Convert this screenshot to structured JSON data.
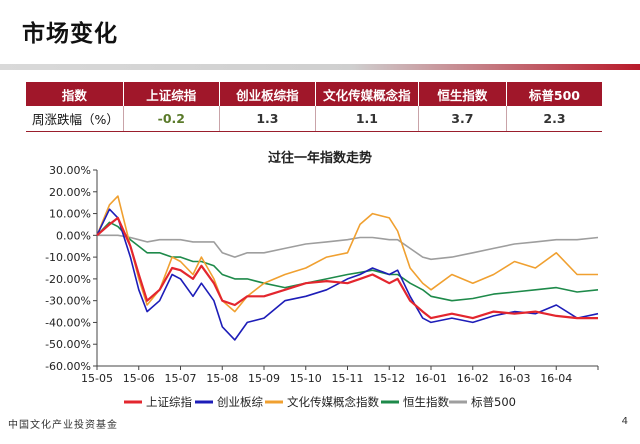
{
  "page": {
    "title": "市场变化",
    "page_number": "4",
    "footer_logo": "中国文化产业投资基金"
  },
  "table": {
    "headers": [
      "指数",
      "上证综指",
      "创业板综指",
      "文化传媒概念指",
      "恒生指数",
      "标普500"
    ],
    "row_label": "周涨跌幅（%）",
    "values": [
      "-0.2",
      "1.3",
      "1.1",
      "3.7",
      "2.3"
    ]
  },
  "chart_data": {
    "type": "line",
    "title": "过往一年指数走势",
    "xlabel": "",
    "ylabel": "",
    "x_ticks": [
      "15-05",
      "15-06",
      "15-07",
      "15-08",
      "15-09",
      "15-10",
      "15-11",
      "15-12",
      "16-01",
      "16-02",
      "16-03",
      "16-04"
    ],
    "y_ticks": [
      "30.00%",
      "20.00%",
      "10.00%",
      "0.00%",
      "-10.00%",
      "-20.00%",
      "-30.00%",
      "-40.00%",
      "-50.00%",
      "-60.00%"
    ],
    "ylim": [
      -60,
      30
    ],
    "grid": false,
    "legend_position": "bottom",
    "series": [
      {
        "name": "上证综指",
        "color": "#e3262e",
        "x": [
          0,
          0.3,
          0.5,
          0.8,
          1,
          1.2,
          1.5,
          1.8,
          2,
          2.3,
          2.5,
          2.8,
          3,
          3.3,
          3.6,
          4,
          4.5,
          5,
          5.5,
          6,
          6.3,
          6.6,
          7,
          7.2,
          7.5,
          7.8,
          8,
          8.5,
          9,
          9.5,
          10,
          10.5,
          11,
          11.5,
          12
        ],
        "values": [
          0,
          5,
          8,
          -5,
          -18,
          -30,
          -25,
          -15,
          -16,
          -20,
          -14,
          -22,
          -30,
          -32,
          -28,
          -28,
          -25,
          -22,
          -21,
          -22,
          -20,
          -18,
          -22,
          -20,
          -30,
          -35,
          -38,
          -36,
          -38,
          -35,
          -36,
          -35,
          -37,
          -38,
          -38
        ]
      },
      {
        "name": "创业板综",
        "color": "#1d1db8",
        "x": [
          0,
          0.3,
          0.5,
          0.8,
          1,
          1.2,
          1.5,
          1.8,
          2,
          2.3,
          2.5,
          2.8,
          3,
          3.3,
          3.6,
          4,
          4.5,
          5,
          5.5,
          6,
          6.3,
          6.6,
          7,
          7.2,
          7.5,
          7.8,
          8,
          8.5,
          9,
          9.5,
          10,
          10.5,
          11,
          11.5,
          12
        ],
        "values": [
          0,
          12,
          8,
          -10,
          -25,
          -35,
          -30,
          -18,
          -20,
          -28,
          -22,
          -30,
          -42,
          -48,
          -40,
          -38,
          -30,
          -28,
          -25,
          -20,
          -18,
          -15,
          -18,
          -16,
          -28,
          -38,
          -40,
          -38,
          -40,
          -37,
          -35,
          -36,
          -32,
          -38,
          -36
        ]
      },
      {
        "name": "文化传媒概念指数",
        "color": "#f0a030",
        "x": [
          0,
          0.3,
          0.5,
          0.8,
          1,
          1.2,
          1.5,
          1.8,
          2,
          2.3,
          2.5,
          2.8,
          3,
          3.3,
          3.6,
          4,
          4.5,
          5,
          5.5,
          6,
          6.3,
          6.6,
          7,
          7.2,
          7.5,
          7.8,
          8,
          8.5,
          9,
          9.5,
          10,
          10.5,
          11,
          11.5,
          12
        ],
        "values": [
          0,
          14,
          18,
          -5,
          -20,
          -32,
          -25,
          -10,
          -12,
          -18,
          -10,
          -20,
          -30,
          -35,
          -28,
          -22,
          -18,
          -15,
          -10,
          -8,
          5,
          10,
          8,
          2,
          -15,
          -22,
          -25,
          -18,
          -22,
          -18,
          -12,
          -15,
          -8,
          -18,
          -18
        ]
      },
      {
        "name": "恒生指数",
        "color": "#1e8a4a",
        "x": [
          0,
          0.3,
          0.5,
          0.8,
          1,
          1.2,
          1.5,
          1.8,
          2,
          2.3,
          2.5,
          2.8,
          3,
          3.3,
          3.6,
          4,
          4.5,
          5,
          5.5,
          6,
          6.3,
          6.6,
          7,
          7.2,
          7.5,
          7.8,
          8,
          8.5,
          9,
          9.5,
          10,
          10.5,
          11,
          11.5,
          12
        ],
        "values": [
          0,
          6,
          4,
          -2,
          -5,
          -8,
          -8,
          -10,
          -10,
          -12,
          -12,
          -14,
          -18,
          -20,
          -20,
          -22,
          -24,
          -22,
          -20,
          -18,
          -17,
          -16,
          -18,
          -18,
          -22,
          -25,
          -28,
          -30,
          -29,
          -27,
          -26,
          -25,
          -24,
          -26,
          -25
        ]
      },
      {
        "name": "标普500",
        "color": "#9e9e9e",
        "x": [
          0,
          0.3,
          0.5,
          0.8,
          1,
          1.2,
          1.5,
          1.8,
          2,
          2.3,
          2.5,
          2.8,
          3,
          3.3,
          3.6,
          4,
          4.5,
          5,
          5.5,
          6,
          6.3,
          6.6,
          7,
          7.2,
          7.5,
          7.8,
          8,
          8.5,
          9,
          9.5,
          10,
          10.5,
          11,
          11.5,
          12
        ],
        "values": [
          0,
          0,
          0,
          -1,
          -2,
          -3,
          -2,
          -2,
          -2,
          -3,
          -3,
          -3,
          -8,
          -10,
          -8,
          -8,
          -6,
          -4,
          -3,
          -2,
          -1,
          -1,
          -2,
          -2,
          -6,
          -10,
          -11,
          -10,
          -8,
          -6,
          -4,
          -3,
          -2,
          -2,
          -1
        ]
      }
    ]
  }
}
